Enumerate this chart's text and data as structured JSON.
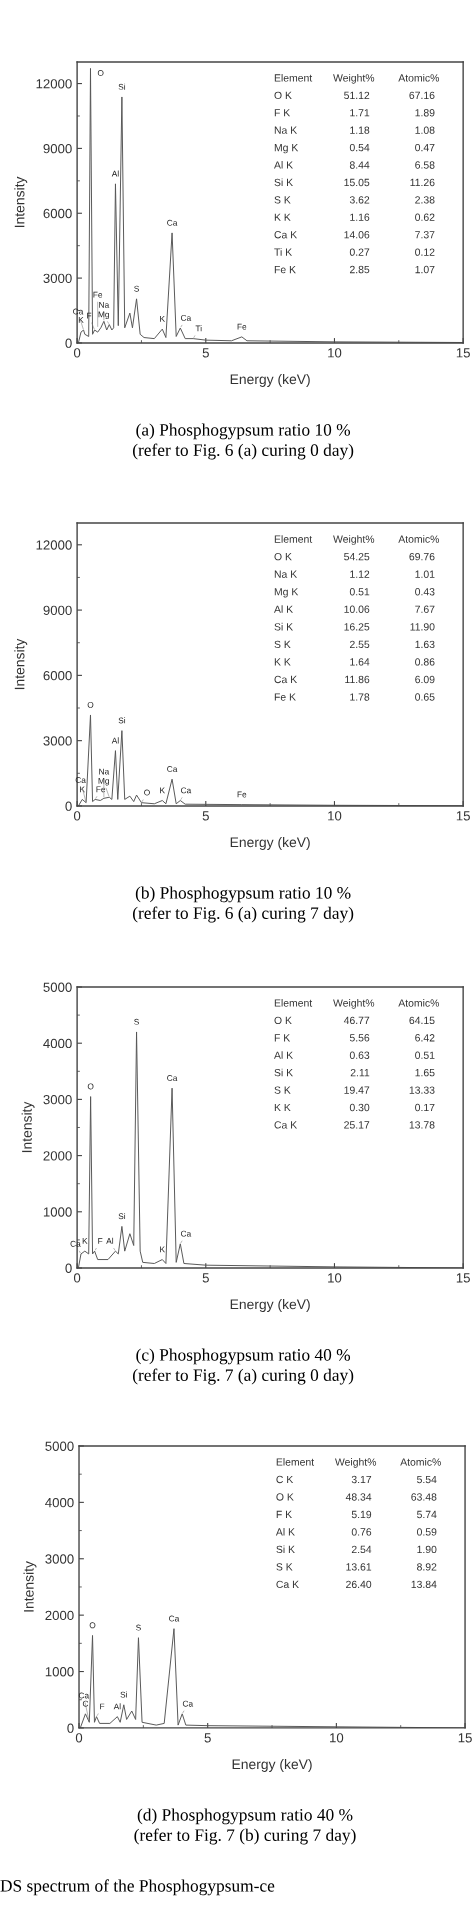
{
  "chart_data": [
    {
      "type": "line",
      "title": "(a) Phosphogypsum ratio 10 %\n(refer to Fig. 6 (a) curing 0 day)",
      "xlabel": "Energy (keV)",
      "ylabel": "Intensity",
      "xlim": [
        0,
        15
      ],
      "xticks": [
        0,
        5,
        10,
        15
      ],
      "ylim": [
        0,
        13000
      ],
      "yticks": [
        0,
        3000,
        6000,
        9000,
        12000
      ],
      "grid": false,
      "marker": "none",
      "line_style": "solid",
      "series": [
        {
          "color": "#555555",
          "x": [
            0.05,
            0.15,
            0.25,
            0.3,
            0.45,
            0.52,
            0.6,
            0.68,
            0.8,
            0.92,
            1.04,
            1.15,
            1.25,
            1.35,
            1.42,
            1.49,
            1.6,
            1.74,
            1.85,
            2.05,
            2.15,
            2.31,
            2.45,
            2.6,
            3.0,
            3.31,
            3.45,
            3.69,
            3.85,
            4.01,
            4.2,
            4.51,
            5.0,
            6.0,
            6.4,
            6.6,
            10,
            15
          ],
          "values": [
            0,
            500,
            600,
            400,
            300,
            12700,
            400,
            600,
            500,
            700,
            1000,
            600,
            850,
            600,
            700,
            7360,
            800,
            11380,
            700,
            1380,
            700,
            2040,
            400,
            250,
            200,
            640,
            250,
            5090,
            300,
            690,
            200,
            200,
            130,
            100,
            280,
            100,
            50,
            20
          ]
        }
      ],
      "annotations": [
        "Element Weight% Atomic%",
        "O K 51.12 67.16",
        "F K 1.71 1.89",
        "Na K 1.18 1.08",
        "Mg K 0.54 0.47",
        "Al K 8.44 6.58",
        "Si K 15.05 11.26",
        "S K 3.62 2.38",
        "K K 1.16 0.62",
        "Ca K 14.06 7.37",
        "Ti K 0.27 0.12",
        "Fe K 2.85 1.07",
        {
          "text": "O",
          "x": 0.52,
          "y": 12700
        },
        {
          "text": "Si",
          "x": 1.74,
          "y": 11380
        },
        {
          "text": "Al",
          "x": 1.49,
          "y": 7360
        },
        {
          "text": "Ca",
          "x": 3.69,
          "y": 5090
        },
        {
          "text": "S",
          "x": 2.31,
          "y": 2040
        },
        {
          "text": "Mg",
          "x": 1.25,
          "y": 850
        },
        {
          "text": "Na",
          "x": 1.04,
          "y": 1000
        },
        {
          "text": "K",
          "x": 0.15,
          "y": 500
        },
        {
          "text": "Fe",
          "x": 0.8,
          "y": 500
        },
        {
          "text": "Ca",
          "x": 0.25,
          "y": 600
        },
        {
          "text": "F",
          "x": 0.68,
          "y": 600
        },
        {
          "text": "K",
          "x": 3.31,
          "y": 640
        },
        {
          "text": "Ca",
          "x": 4.01,
          "y": 690
        },
        {
          "text": "Ti",
          "x": 4.51,
          "y": 200
        },
        {
          "text": "Fe",
          "x": 6.4,
          "y": 280
        }
      ]
    },
    {
      "type": "line",
      "title": "(b) Phosphogypsum ratio 10 %\n(refer to Fig. 6 (a) curing 7 day)",
      "xlabel": "Energy (keV)",
      "ylabel": "Intensity",
      "xlim": [
        0,
        15
      ],
      "xticks": [
        0,
        5,
        10,
        15
      ],
      "ylim": [
        0,
        13000
      ],
      "yticks": [
        0,
        3000,
        6000,
        9000,
        12000
      ],
      "grid": false,
      "marker": "none",
      "line_style": "solid",
      "series": [
        {
          "color": "#555555",
          "x": [
            0.05,
            0.2,
            0.35,
            0.52,
            0.6,
            0.7,
            0.9,
            1.04,
            1.25,
            1.35,
            1.49,
            1.58,
            1.74,
            1.85,
            2.05,
            2.2,
            2.31,
            2.5,
            3.0,
            3.31,
            3.45,
            3.69,
            3.85,
            4.01,
            4.2,
            6.4,
            10,
            15
          ],
          "values": [
            0,
            300,
            150,
            4180,
            200,
            300,
            250,
            350,
            400,
            300,
            2540,
            300,
            3460,
            300,
            450,
            200,
            500,
            150,
            100,
            250,
            100,
            1230,
            100,
            250,
            80,
            60,
            30,
            10
          ]
        }
      ],
      "annotations": [
        "Element Weight% Atomic%",
        "O K 54.25 69.76",
        "Na K 1.12 1.01",
        "Mg K 0.51 0.43",
        "Al K 10.06 7.67",
        "Si K 16.25 11.90",
        "S K 2.55 1.63",
        "K K 1.64 0.86",
        "Ca K 11.86 6.09",
        "Fe K 1.78 0.65",
        {
          "text": "O",
          "x": 0.52,
          "y": 4180
        },
        {
          "text": "Si",
          "x": 1.74,
          "y": 3460
        },
        {
          "text": "Al",
          "x": 1.49,
          "y": 2540
        },
        {
          "text": "Ca",
          "x": 3.69,
          "y": 1230
        },
        {
          "text": "K",
          "x": 0.2,
          "y": 300
        },
        {
          "text": "Fe",
          "x": 0.7,
          "y": 300
        },
        {
          "text": "Mg",
          "x": 1.25,
          "y": 400
        },
        {
          "text": "Na",
          "x": 1.04,
          "y": 350
        },
        {
          "text": "Ca",
          "x": 0.35,
          "y": 150
        },
        {
          "text": "O",
          "x": 2.5,
          "y": 150
        },
        {
          "text": "K",
          "x": 3.31,
          "y": 250
        },
        {
          "text": "Ca",
          "x": 4.01,
          "y": 250
        },
        {
          "text": "Fe",
          "x": 6.4,
          "y": 60
        }
      ]
    },
    {
      "type": "line",
      "title": "(c) Phosphogypsum ratio 40 %\n(refer to Fig. 7 (a) curing 0 day)",
      "xlabel": "Energy (keV)",
      "ylabel": "Intensity",
      "xlim": [
        0,
        15
      ],
      "xticks": [
        0,
        5,
        10,
        15
      ],
      "ylim": [
        0,
        5000
      ],
      "yticks": [
        0,
        1000,
        2000,
        3000,
        4000,
        5000
      ],
      "grid": false,
      "marker": "none",
      "line_style": "solid",
      "series": [
        {
          "color": "#555555",
          "x": [
            0.05,
            0.15,
            0.3,
            0.45,
            0.525,
            0.6,
            0.68,
            0.8,
            1.2,
            1.49,
            1.6,
            1.74,
            1.85,
            2.05,
            2.2,
            2.31,
            2.45,
            2.55,
            3.0,
            3.31,
            3.45,
            3.69,
            3.85,
            4.01,
            4.15,
            5,
            10,
            15
          ],
          "values": [
            0,
            250,
            300,
            250,
            3050,
            250,
            300,
            150,
            150,
            300,
            250,
            740,
            300,
            610,
            400,
            4200,
            300,
            100,
            80,
            150,
            80,
            3200,
            100,
            430,
            80,
            50,
            20,
            0
          ]
        }
      ],
      "annotations": [
        "Element Weight% Atomic%",
        "O K 46.77 64.15",
        "F K 5.56 6.42",
        "Al K 0.63 0.51",
        "Si K 2.11 1.65",
        "S K 19.47 13.33",
        "K K 0.30 0.17",
        "Ca K 25.17 13.78",
        {
          "text": "O",
          "x": 0.525,
          "y": 3050
        },
        {
          "text": "S",
          "x": 2.31,
          "y": 4200
        },
        {
          "text": "Ca",
          "x": 3.69,
          "y": 3200
        },
        {
          "text": "Si",
          "x": 1.74,
          "y": 740
        },
        {
          "text": "Ca",
          "x": 4.01,
          "y": 430
        },
        {
          "text": "Al",
          "x": 1.49,
          "y": 300
        },
        {
          "text": "K",
          "x": 0.3,
          "y": 300
        },
        {
          "text": "F",
          "x": 0.68,
          "y": 300
        },
        {
          "text": "Ca",
          "x": 0.15,
          "y": 250
        },
        {
          "text": "K",
          "x": 3.31,
          "y": 150
        }
      ]
    },
    {
      "type": "line",
      "title": "(d) Phosphogypsum ratio 40 %\n(refer to Fig. 7 (b) curing 7 day)",
      "subtitle": "DS spectrum of the Phosphogypsum-ce",
      "xlabel": "Energy (keV)",
      "ylabel": "Intensity",
      "xlim": [
        0,
        15
      ],
      "xticks": [
        0,
        5,
        10,
        15
      ],
      "ylim": [
        0,
        5000
      ],
      "yticks": [
        0,
        1000,
        2000,
        3000,
        4000,
        5000
      ],
      "grid": false,
      "marker": "none",
      "line_style": "solid",
      "series": [
        {
          "color": "#555555",
          "x": [
            0.05,
            0.25,
            0.4,
            0.525,
            0.6,
            0.68,
            0.8,
            1.2,
            1.49,
            1.6,
            1.74,
            1.85,
            2.05,
            2.2,
            2.31,
            2.45,
            3.0,
            3.31,
            3.69,
            3.85,
            4.01,
            4.15,
            5,
            10,
            15
          ],
          "values": [
            0,
            250,
            100,
            1640,
            100,
            200,
            80,
            80,
            200,
            100,
            410,
            150,
            300,
            150,
            1600,
            100,
            50,
            80,
            1760,
            50,
            250,
            50,
            40,
            20,
            0
          ]
        }
      ],
      "annotations": [
        "Element Weight% Atomic%",
        "C K 3.17 5.54",
        "O K 48.34 63.48",
        "F K 5.19 5.74",
        "Al K 0.76 0.59",
        "Si K 2.54 1.90",
        "S K 13.61 8.92",
        "Ca K 26.40 13.84",
        {
          "text": "O",
          "x": 0.525,
          "y": 1640
        },
        {
          "text": "S",
          "x": 2.31,
          "y": 1600
        },
        {
          "text": "Ca",
          "x": 3.69,
          "y": 1760
        },
        {
          "text": "Si",
          "x": 1.74,
          "y": 410
        },
        {
          "text": "Ca",
          "x": 4.01,
          "y": 250
        },
        {
          "text": "Al",
          "x": 1.49,
          "y": 200
        },
        {
          "text": "C",
          "x": 0.25,
          "y": 250
        },
        {
          "text": "F",
          "x": 0.68,
          "y": 200
        },
        {
          "text": "Ca",
          "x": 0.4,
          "y": 100
        }
      ]
    }
  ]
}
